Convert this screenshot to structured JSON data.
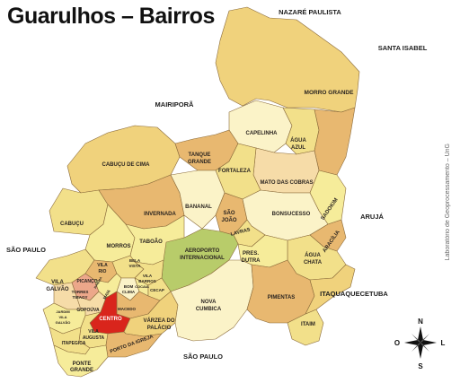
{
  "title": "Guarulhos – Bairros",
  "credit": "Laboratório de Geoprocessamento – UnG",
  "neighbors": {
    "nazare_paulista": "NAZARÉ PAULISTA",
    "santa_isabel": "SANTA ISABEL",
    "mairipora": "MAIRIPORÃ",
    "aruja": "ARUJÁ",
    "sao_paulo_west": "SÃO PAULO",
    "sao_paulo_south": "SÃO PAULO",
    "itaquaquecetuba": "ITAQUAQUECETUBA"
  },
  "compass": {
    "n": "N",
    "s": "S",
    "l": "L",
    "o": "O"
  },
  "districts": {
    "morro_grande": "MORRO GRANDE",
    "capelinha": "CAPELINHA",
    "agua_azul": [
      "ÁGUA",
      "AZUL"
    ],
    "cabucu_de_cima": "CABUÇU DE CIMA",
    "tanque_grande": [
      "TANQUE",
      "GRANDE"
    ],
    "fortaleza": "FORTALEZA",
    "mato_das_cobras": "MATO DAS COBRAS",
    "sadokim": "SADOKIM",
    "cabucu": "CABUÇU",
    "invernada": "INVERNADA",
    "bananal": "BANANAL",
    "sao_joao": [
      "SÃO",
      "JOÃO"
    ],
    "bonsucesso": "BONSUCESSO",
    "lavras": "LAVRAS",
    "aracilia": "ARACÍLIA",
    "taboao": "TABOÃO",
    "morros": "MORROS",
    "aeroporto": [
      "AEROPORTO",
      "INTERNACIONAL"
    ],
    "pres_dutra": [
      "PRES.",
      "DUTRA"
    ],
    "agua_chata": [
      "ÁGUA",
      "CHATA"
    ],
    "vila_galvao": [
      "VILA",
      "GALVÃO"
    ],
    "vila_rio": [
      "VILA",
      "RIO"
    ],
    "bela_vista": [
      "BELA",
      "VISTA"
    ],
    "vila_barros": [
      "VILA",
      "BARROS"
    ],
    "picanco": "PICANÇO",
    "torres_tibagy": [
      "TORRES",
      "TIBAGY"
    ],
    "maia": "MAIA",
    "bom_clima": [
      "BOM",
      "CLIMA"
    ],
    "cocaia": "COCAIA",
    "cecap": "CECAP",
    "gopouva": "GOPOÚVA",
    "macedo": "MACEDO",
    "centro": "CENTRO",
    "nova_cumbica": [
      "NOVA",
      "CUMBICA"
    ],
    "pimentas": "PIMENTAS",
    "jardim_vila_galvao": [
      "JARDIM",
      "VILA",
      "GALVÃO"
    ],
    "vila_augusta": [
      "VILA",
      "AUGUSTA"
    ],
    "varzea_palacio": [
      "VÁRZEA DO",
      "PALÁCIO"
    ],
    "itapegica": "ITAPEGICA",
    "ponte_grande": [
      "PONTE",
      "GRANDE"
    ],
    "porto_igreja": "PORTO DA IGREJA",
    "itaim": "ITAIM",
    "jurema": "JUREMA"
  },
  "colors": {
    "yellow": "#f2e08a",
    "orange": "#e8b870",
    "pale": "#fbf3c8",
    "green": "#b8cc6a",
    "red": "#d9251c",
    "salmon": "#eca78a",
    "border": "#8a6a3a"
  }
}
